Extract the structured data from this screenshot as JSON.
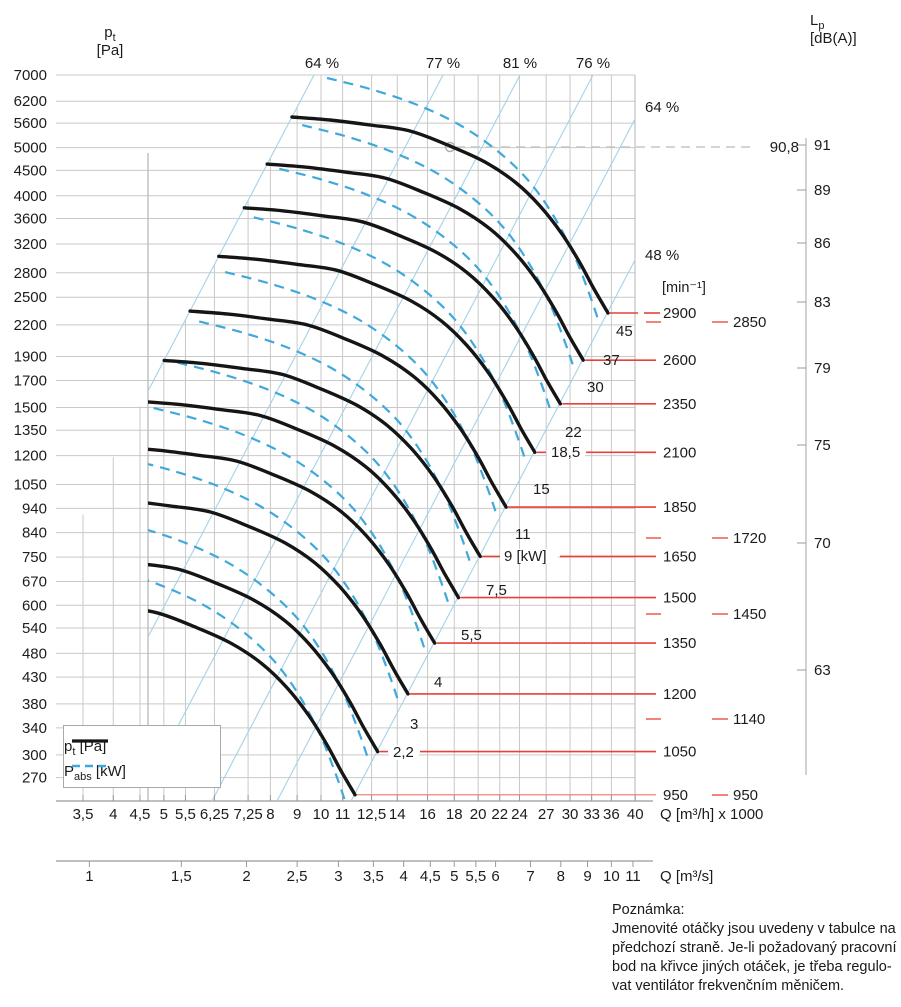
{
  "chart_data": {
    "type": "line",
    "description": "Fan performance diagram: total pressure pt versus volume flow Q for constant impeller speeds, with absorbed power curves, efficiency lines and sound pressure level scale",
    "y_axis": {
      "quantity": "p",
      "quantity_sub": "t",
      "unit": "[Pa]",
      "ticks": [
        7000,
        6200,
        5600,
        5000,
        4500,
        4000,
        3600,
        3200,
        2800,
        2500,
        2200,
        1900,
        1700,
        1500,
        1350,
        1200,
        1050,
        940,
        840,
        750,
        670,
        600,
        540,
        480,
        430,
        380,
        340,
        300,
        270
      ]
    },
    "x_axis_m3h": {
      "unit": "Q [m³/h] x 1000",
      "tick_labels": [
        "3,5",
        "4",
        "4,5",
        "5",
        "5,5",
        "6,25",
        "7,25",
        "8",
        "9",
        "10",
        "11",
        "12,5",
        "14",
        "16",
        "18",
        "20",
        "22",
        "24",
        "27",
        "30",
        "33",
        "36",
        "40"
      ],
      "tick_values": [
        3.5,
        4,
        4.5,
        5,
        5.5,
        6.25,
        7.25,
        8,
        9,
        10,
        11,
        12.5,
        14,
        16,
        18,
        20,
        22,
        24,
        27,
        30,
        33,
        36,
        40
      ]
    },
    "x_axis_m3s": {
      "unit": "Q [m³/s]",
      "tick_labels": [
        "1",
        "1,5",
        "2",
        "2,5",
        "3",
        "3,5",
        "4",
        "4,5",
        "5",
        "5,5",
        "6",
        "7",
        "8",
        "9",
        "10",
        "11"
      ],
      "tick_values": [
        1,
        1.5,
        2,
        2.5,
        3,
        3.5,
        4,
        4.5,
        5,
        5.5,
        6,
        7,
        8,
        9,
        10,
        11
      ]
    },
    "lp_axis": {
      "quantity": "L",
      "quantity_sub": "p",
      "unit": "[dB(A)]",
      "ticks": [
        "91",
        "89",
        "86",
        "83",
        "79",
        "75",
        "70",
        "63"
      ]
    },
    "speed_axis_unit": "[min⁻¹]",
    "speed_curves_rpm": [
      2900,
      2600,
      2350,
      2100,
      1850,
      1650,
      1500,
      1350,
      1200,
      1050,
      950
    ],
    "secondary_speeds_rpm": [
      "2850",
      "1720",
      "1450",
      "1140",
      "950"
    ],
    "power_labels_kw": [
      "45",
      "37",
      "30",
      "22",
      "18,5",
      "15",
      "11",
      "9 [kW]",
      "7,5",
      "5,5",
      "4",
      "3",
      "2,2"
    ],
    "efficiency_labels_top": [
      "64 %",
      "77 %",
      "81 %",
      "76 %"
    ],
    "efficiency_labels_right": [
      "64 %",
      "48 %"
    ],
    "operating_point": {
      "lp": "90,8",
      "pt_pa": 5000,
      "nearest_lp_tick": "91",
      "rpm": 2900
    }
  },
  "legend": {
    "items": [
      {
        "label_main": "p",
        "label_sub": "t",
        "label_rest": " [Pa]",
        "style": "solid-black"
      },
      {
        "label_main": "P",
        "label_sub": "abs",
        "label_rest": " [kW]",
        "style": "dashed-blue"
      }
    ]
  },
  "note": {
    "title": "Poznámka:",
    "lines": [
      "Jmenovité otáčky jsou uvedeny v tabulce na",
      "předchozí straně. Je-li požadovaný pracovní",
      "bod na křivce jiných otáček, je třeba regulo-",
      "vat ventilátor frekvenčním měničem."
    ]
  },
  "colors": {
    "curve": "#151515",
    "power_curve": "#3fa9dc",
    "efficiency_line": "#a5d2e8",
    "grid": "#c9c9c9",
    "axis": "#9a9a9a",
    "red": "#e8413a",
    "red_light": "#f0837b",
    "ref_dashed": "#c6c6c6",
    "text": "#1c1c1c"
  }
}
